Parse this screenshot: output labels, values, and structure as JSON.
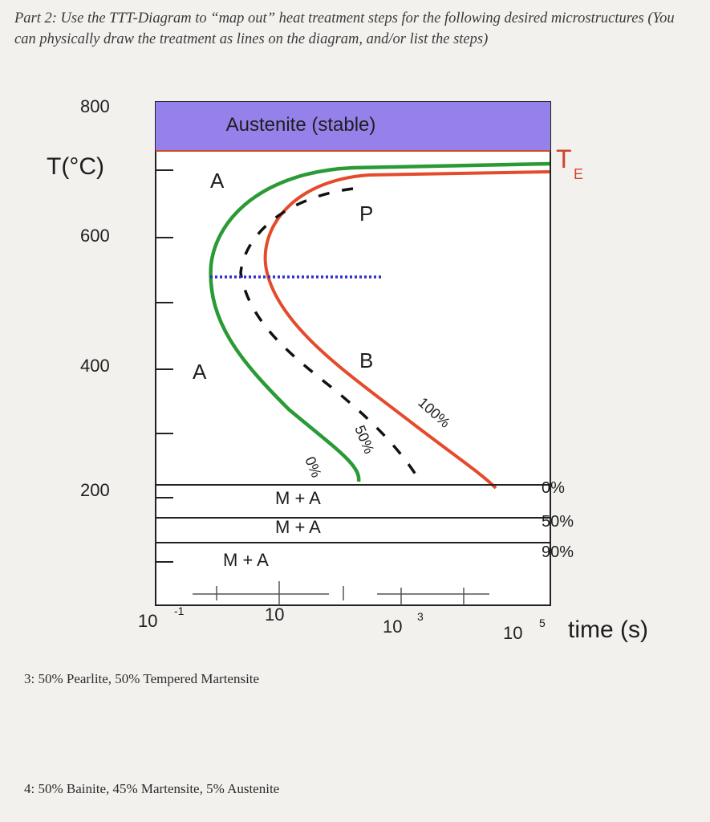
{
  "prompt": "Part 2: Use the TTT-Diagram to “map out” heat treatment steps for the following desired microstructures (You can physically draw the treatment as lines on the diagram, and/or list the steps)",
  "diagram": {
    "y_axis_label": "T(°C)",
    "y_ticks": [
      "800",
      "600",
      "400",
      "200"
    ],
    "x_axis_label": "time (s)",
    "x_ticks": [
      {
        "base": "10",
        "exp": "-1"
      },
      {
        "base": "10",
        "exp": ""
      },
      {
        "base": "10",
        "exp": "3"
      },
      {
        "base": "10",
        "exp": "5"
      }
    ],
    "austenite_band_label": "Austenite (stable)",
    "te_label": "T",
    "te_sub": "E",
    "region_labels": {
      "a_upper": "A",
      "a_lower": "A",
      "pearlite": "P",
      "bainite": "B"
    },
    "curve_labels": {
      "start": "0%",
      "half": "50%",
      "finish": "100%"
    },
    "martensite": {
      "labels": [
        "M + A",
        "M + A",
        "M + A"
      ],
      "percent_labels": [
        "0%",
        "50%",
        "90%"
      ]
    },
    "colors": {
      "band": "#9680ea",
      "start_curve": "#2a9a35",
      "finish_curve": "#e44b2a",
      "dotted_line": "#2d2fc8"
    }
  },
  "questions": [
    "3: 50% Pearlite, 50% Tempered Martensite",
    "4: 50% Bainite, 45% Martensite, 5% Austenite"
  ]
}
